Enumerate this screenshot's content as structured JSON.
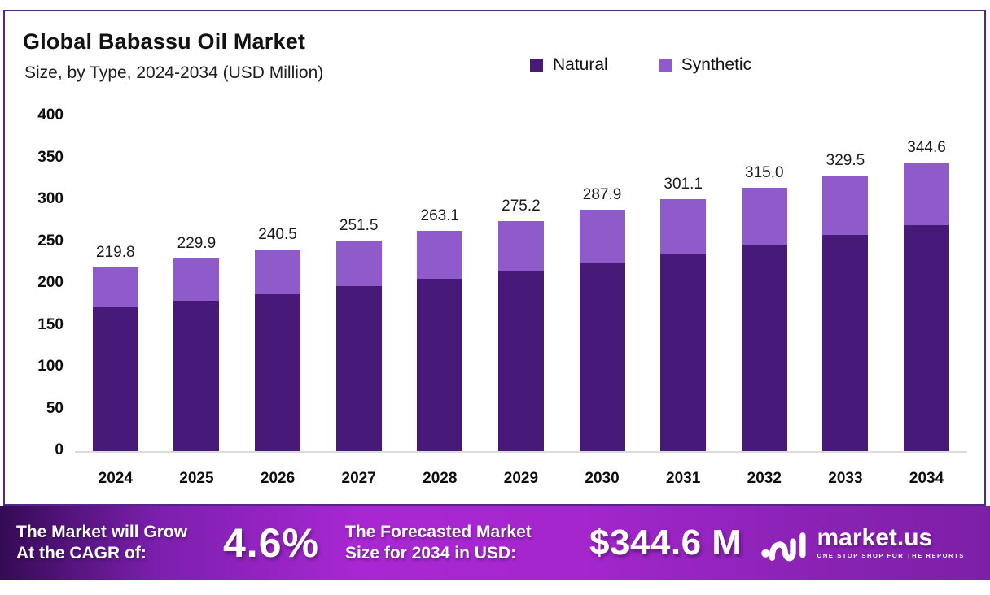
{
  "header": {
    "title": "Global Babassu Oil Market",
    "subtitle": "Size, by Type, 2024-2034 (USD Million)"
  },
  "legend": [
    {
      "label": "Natural",
      "color": "#471979"
    },
    {
      "label": "Synthetic",
      "color": "#8f5bcb"
    }
  ],
  "chart_data": {
    "type": "bar",
    "stacked": true,
    "title": "Global Babassu Oil Market Size, by Type, 2024-2034 (USD Million)",
    "categories": [
      "2024",
      "2025",
      "2026",
      "2027",
      "2028",
      "2029",
      "2030",
      "2031",
      "2032",
      "2033",
      "2034"
    ],
    "series": [
      {
        "name": "Natural",
        "color": "#471979",
        "values": [
          171.7,
          179.6,
          187.8,
          196.7,
          205.7,
          215.2,
          225.1,
          235.8,
          246.6,
          258.0,
          269.8
        ]
      },
      {
        "name": "Synthetic",
        "color": "#8f5bcb",
        "values": [
          48.1,
          50.3,
          52.7,
          54.8,
          57.4,
          60.0,
          62.8,
          65.3,
          68.4,
          71.5,
          74.8
        ]
      }
    ],
    "totals": [
      219.8,
      229.9,
      240.5,
      251.5,
      263.1,
      275.2,
      287.9,
      301.1,
      315.0,
      329.5,
      344.6
    ],
    "total_labels": [
      "219.8",
      "229.9",
      "240.5",
      "251.5",
      "263.1",
      "275.2",
      "287.9",
      "301.1",
      "315.0",
      "329.5",
      "344.6"
    ],
    "ylabel": "",
    "xlabel": "",
    "ylim": [
      0,
      400
    ],
    "yticks": [
      0,
      50,
      100,
      150,
      200,
      250,
      300,
      350,
      400
    ],
    "grid": false,
    "legend_position": "top-right"
  },
  "banner": {
    "cagr_label_line1": "The Market will Grow",
    "cagr_label_line2": "At the CAGR of:",
    "cagr_value": "4.6%",
    "forecast_label_line1": "The Forecasted Market",
    "forecast_label_line2": "Size for 2034 in USD:",
    "forecast_value": "$344.6 M",
    "brand": {
      "name": "market.us",
      "tagline": "ONE STOP SHOP FOR THE REPORTS"
    }
  },
  "colors": {
    "natural": "#471979",
    "synthetic": "#8f5bcb",
    "card_border": "#56258a",
    "banner_mid": "#a827d2",
    "banner_edge_left": "#340b55",
    "banner_edge_right": "#7d1fa6"
  }
}
